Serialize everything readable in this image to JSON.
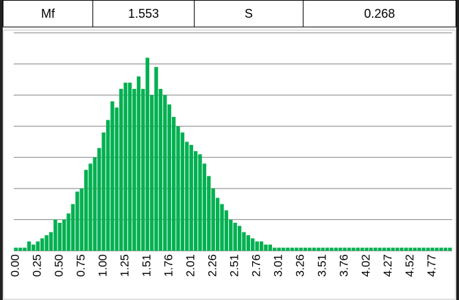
{
  "header": {
    "cells": [
      {
        "label": "Mf",
        "value": 1.553
      },
      {
        "label": "S",
        "value": 0.268
      }
    ]
  },
  "chart_data": {
    "type": "bar",
    "color": "#00b050",
    "grid": true,
    "ylim": [
      0,
      7
    ],
    "yticks": [
      0,
      1,
      2,
      3,
      4,
      5,
      6,
      7
    ],
    "categories": [
      "0.00",
      null,
      null,
      null,
      null,
      "0.25",
      null,
      null,
      null,
      null,
      "0.50",
      null,
      null,
      null,
      null,
      "0.75",
      null,
      null,
      null,
      null,
      "1.00",
      null,
      null,
      null,
      null,
      "1.25",
      null,
      null,
      null,
      null,
      "1.51",
      null,
      null,
      null,
      null,
      "1.76",
      null,
      null,
      null,
      null,
      "2.01",
      null,
      null,
      null,
      null,
      "2.26",
      null,
      null,
      null,
      null,
      "2.51",
      null,
      null,
      null,
      null,
      "2.76",
      null,
      null,
      null,
      null,
      "3.01",
      null,
      null,
      null,
      null,
      "3.26",
      null,
      null,
      null,
      null,
      "3.51",
      null,
      null,
      null,
      null,
      "3.76",
      null,
      null,
      null,
      null,
      "4.02",
      null,
      null,
      null,
      null,
      "4.27",
      null,
      null,
      null,
      null,
      "4.52",
      null,
      null,
      null,
      null,
      "4.77",
      null,
      null,
      null,
      null
    ],
    "values": [
      0.1,
      0.1,
      0.1,
      0.3,
      0.2,
      0.3,
      0.4,
      0.5,
      0.6,
      1.0,
      0.9,
      1.0,
      1.2,
      1.5,
      1.9,
      2.0,
      2.6,
      2.8,
      3.0,
      3.3,
      3.8,
      4.2,
      4.8,
      4.6,
      5.2,
      5.4,
      5.4,
      5.2,
      5.6,
      5.2,
      6.2,
      5.0,
      5.9,
      5.2,
      5.0,
      4.7,
      4.3,
      4.0,
      3.8,
      3.5,
      3.4,
      3.2,
      3.1,
      2.8,
      2.4,
      2.0,
      1.7,
      1.5,
      1.3,
      1.0,
      0.9,
      0.8,
      0.6,
      0.5,
      0.4,
      0.3,
      0.3,
      0.2,
      0.2,
      0.1,
      0.1,
      0.1,
      0.1,
      0.1,
      0.1,
      0.1,
      0.1,
      0.1,
      0.1,
      0.1,
      0.1,
      0.1,
      0.1,
      0.1,
      0.1,
      0.1,
      0.1,
      0.1,
      0.1,
      0.1,
      0.1,
      0.1,
      0.1,
      0.1,
      0.1,
      0.1,
      0.1,
      0.1,
      0.1,
      0.1,
      0.1,
      0.1,
      0.1,
      0.1,
      0.1,
      0.1,
      0.1,
      0.1,
      0.1,
      0.1
    ]
  }
}
